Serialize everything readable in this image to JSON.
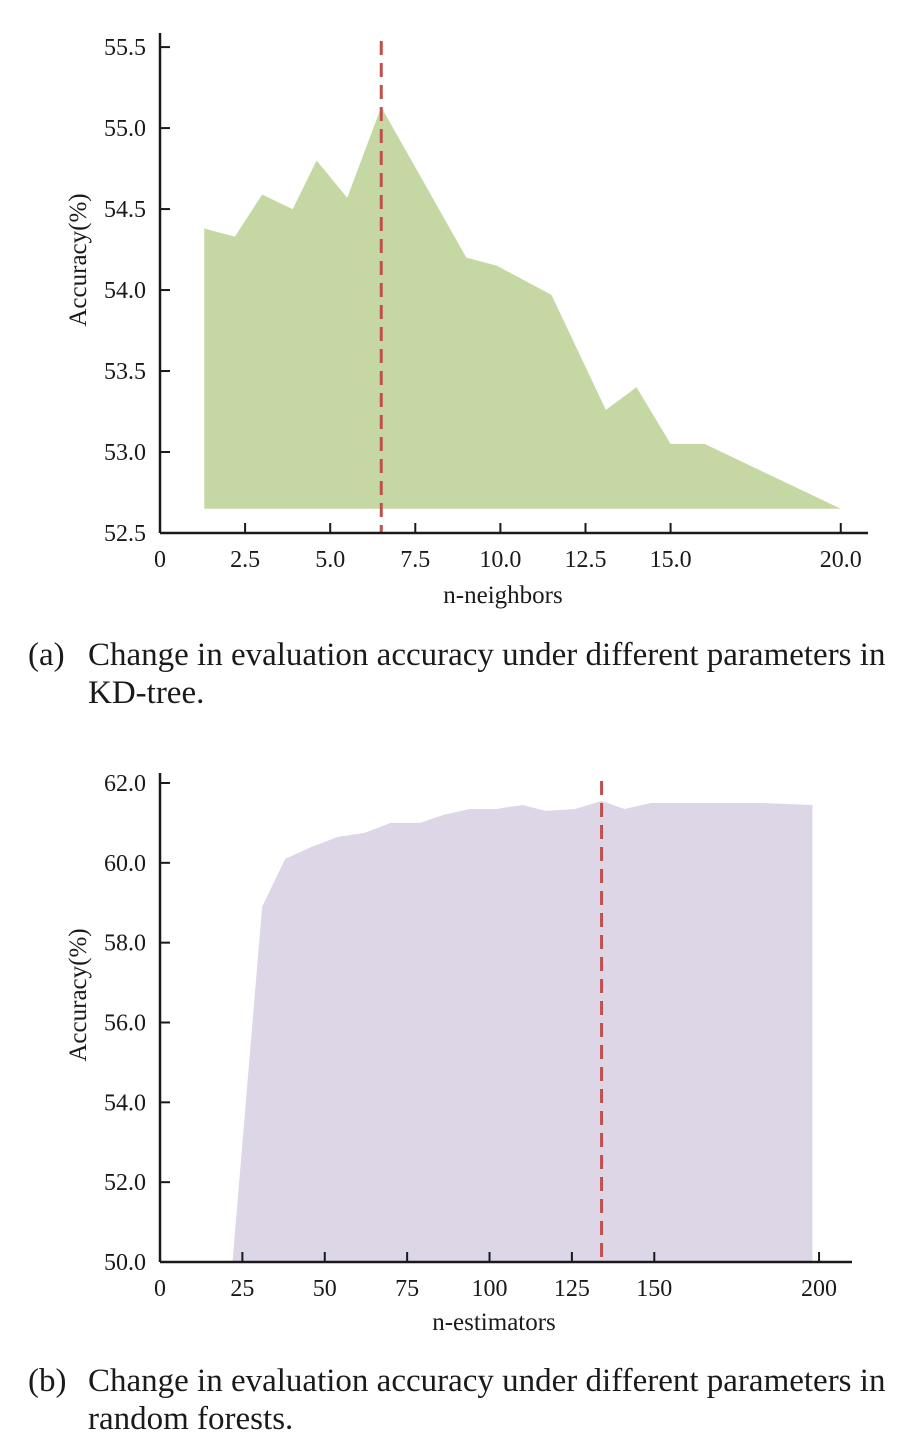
{
  "chart_data": [
    {
      "type": "area",
      "xlabel": "n-neighbors",
      "ylabel": "Accuracy(%)",
      "xlim": [
        0,
        20.8
      ],
      "ylim": [
        52.5,
        55.55
      ],
      "xticks": [
        0,
        2.5,
        5.0,
        7.5,
        10.0,
        12.5,
        15.0,
        20.0
      ],
      "xtick_labels": [
        "0",
        "2.5",
        "5.0",
        "7.5",
        "10.0",
        "12.5",
        "15.0",
        "20.0"
      ],
      "yticks": [
        52.5,
        53.0,
        53.5,
        54.0,
        54.5,
        55.0,
        55.5
      ],
      "ytick_labels": [
        "52.5",
        "53.0",
        "53.5",
        "54.0",
        "54.5",
        "55.0",
        "55.5"
      ],
      "fill_base": 52.65,
      "series": [
        {
          "x": [
            1.3,
            2.2,
            3.0,
            3.9,
            4.6,
            5.5,
            6.5,
            9.0,
            9.9,
            11.5,
            13.1,
            14.0,
            15.0,
            16.0,
            20.0
          ],
          "y": [
            54.38,
            54.33,
            54.59,
            54.5,
            54.8,
            54.57,
            55.13,
            54.2,
            54.15,
            53.97,
            53.26,
            53.4,
            53.05,
            53.05,
            52.65
          ],
          "color": "#c5d8a3"
        }
      ],
      "vline": {
        "x": 6.5,
        "color": "#c0504d"
      },
      "caption_label": "(a)",
      "caption_text": "Change in evaluation accuracy under different parameters in KD-tree."
    },
    {
      "type": "area",
      "xlabel": "n-estimators",
      "ylabel": "Accuracy(%)",
      "xlim": [
        0,
        210
      ],
      "ylim": [
        50.0,
        62.1
      ],
      "xticks": [
        0,
        25,
        50,
        75,
        100,
        125,
        150,
        200
      ],
      "xtick_labels": [
        "0",
        "25",
        "50",
        "75",
        "100",
        "125",
        "150",
        "200"
      ],
      "yticks": [
        50.0,
        52.0,
        54.0,
        56.0,
        58.0,
        60.0,
        62.0
      ],
      "ytick_labels": [
        "50.0",
        "52.0",
        "54.0",
        "56.0",
        "58.0",
        "60.0",
        "62.0"
      ],
      "fill_base": 50.0,
      "series": [
        {
          "x": [
            22,
            31,
            38,
            46,
            54,
            62,
            70,
            79,
            86,
            94,
            102,
            110,
            117,
            126,
            134,
            141,
            149,
            158,
            166,
            174,
            182,
            198
          ],
          "y": [
            50.0,
            58.9,
            60.1,
            60.4,
            60.65,
            60.75,
            61.0,
            61.0,
            61.2,
            61.35,
            61.35,
            61.45,
            61.3,
            61.35,
            61.55,
            61.35,
            61.5,
            61.5,
            61.5,
            61.5,
            61.5,
            61.45
          ],
          "color": "#dcd6e6"
        }
      ],
      "vline": {
        "x": 134,
        "color": "#c0504d"
      },
      "caption_label": "(b)",
      "caption_text": "Change in evaluation accuracy under different parameters in random forests."
    }
  ]
}
